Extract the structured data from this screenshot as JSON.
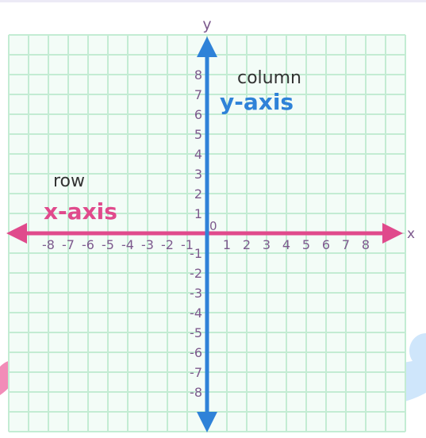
{
  "axes": {
    "x_name": "x",
    "y_name": "y",
    "origin_label": "0",
    "x_ticks": [
      "-8",
      "-7",
      "-6",
      "-5",
      "-4",
      "-3",
      "-2",
      "-1",
      "1",
      "2",
      "3",
      "4",
      "5",
      "6",
      "7",
      "8"
    ],
    "y_ticks_pos": [
      "8",
      "7",
      "6",
      "5",
      "4",
      "3",
      "2",
      "1"
    ],
    "y_ticks_neg": [
      "-1",
      "-2",
      "-3",
      "-4",
      "-5",
      "-6",
      "-7",
      "-8"
    ]
  },
  "annotations": {
    "row_label": "row",
    "x_axis_label": "x-axis",
    "column_label": "column",
    "y_axis_label": "y-axis"
  },
  "colors": {
    "grid": "#c3ecd3",
    "grid_bg": "#f3fcf7",
    "x_axis": "#e04a8c",
    "y_axis": "#2f82d8",
    "tick_text": "#7d5a8e",
    "label_text": "#333333",
    "blob_pink": "#f28cb8",
    "blob_blue": "#cfe6fb"
  }
}
